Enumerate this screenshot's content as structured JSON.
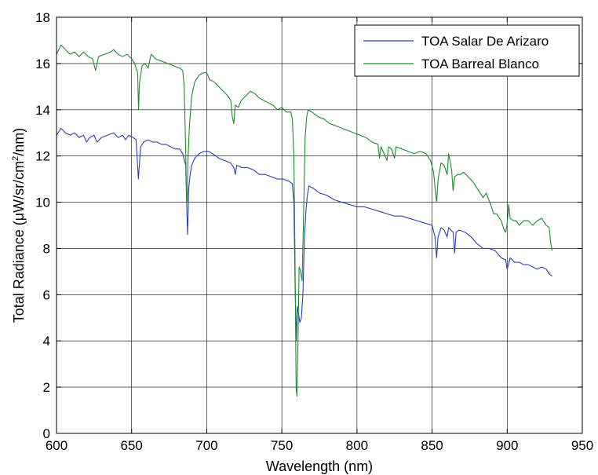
{
  "chart_data": {
    "type": "line",
    "xlabel": "Wavelength (nm)",
    "ylabel_parts": {
      "before": "Total Radiance (μW/sr/cm",
      "sup": "2",
      "after": "/nm)"
    },
    "xlim": [
      600,
      950
    ],
    "ylim": [
      0,
      18
    ],
    "xticks": [
      600,
      650,
      700,
      750,
      800,
      850,
      900,
      950
    ],
    "yticks": [
      0,
      2,
      4,
      6,
      8,
      10,
      12,
      14,
      16,
      18
    ],
    "grid": true,
    "legend_position": "top-right",
    "series": [
      {
        "name": "TOA Salar De Arizaro",
        "color": "#2b3fb5",
        "points": [
          [
            600,
            12.9
          ],
          [
            603,
            13.2
          ],
          [
            606,
            13.0
          ],
          [
            609,
            12.9
          ],
          [
            612,
            13.0
          ],
          [
            615,
            12.8
          ],
          [
            618,
            12.9
          ],
          [
            620,
            12.6
          ],
          [
            622,
            12.8
          ],
          [
            625,
            12.9
          ],
          [
            627,
            12.6
          ],
          [
            630,
            12.8
          ],
          [
            634,
            12.9
          ],
          [
            638,
            13.0
          ],
          [
            641,
            12.8
          ],
          [
            644,
            12.9
          ],
          [
            646,
            12.7
          ],
          [
            648,
            12.9
          ],
          [
            651,
            12.8
          ],
          [
            653,
            12.7
          ],
          [
            654.5,
            11.0
          ],
          [
            656,
            12.4
          ],
          [
            658,
            12.6
          ],
          [
            661,
            12.7
          ],
          [
            664,
            12.6
          ],
          [
            667,
            12.6
          ],
          [
            670,
            12.5
          ],
          [
            673,
            12.5
          ],
          [
            676,
            12.4
          ],
          [
            679,
            12.3
          ],
          [
            682,
            12.3
          ],
          [
            684,
            12.1
          ],
          [
            686,
            11.6
          ],
          [
            686.8,
            9.6
          ],
          [
            687.3,
            8.6
          ],
          [
            688,
            10.6
          ],
          [
            689,
            11.2
          ],
          [
            690,
            11.6
          ],
          [
            692,
            11.9
          ],
          [
            695,
            12.1
          ],
          [
            698,
            12.2
          ],
          [
            701,
            12.2
          ],
          [
            704,
            12.1
          ],
          [
            708,
            11.9
          ],
          [
            712,
            11.8
          ],
          [
            716,
            11.7
          ],
          [
            718,
            11.5
          ],
          [
            719,
            11.2
          ],
          [
            720,
            11.6
          ],
          [
            723,
            11.5
          ],
          [
            727,
            11.5
          ],
          [
            731,
            11.4
          ],
          [
            735,
            11.2
          ],
          [
            739,
            11.2
          ],
          [
            743,
            11.1
          ],
          [
            747,
            11.0
          ],
          [
            751,
            11.0
          ],
          [
            755,
            10.9
          ],
          [
            757,
            10.8
          ],
          [
            758,
            10.0
          ],
          [
            758.8,
            6.5
          ],
          [
            759.6,
            4.0
          ],
          [
            760.3,
            5.5
          ],
          [
            761,
            5.2
          ],
          [
            762,
            4.8
          ],
          [
            763,
            5.0
          ],
          [
            764,
            6.0
          ],
          [
            765,
            8.4
          ],
          [
            766,
            9.6
          ],
          [
            767,
            10.3
          ],
          [
            768,
            10.7
          ],
          [
            771,
            10.6
          ],
          [
            775,
            10.4
          ],
          [
            780,
            10.3
          ],
          [
            785,
            10.1
          ],
          [
            790,
            10.0
          ],
          [
            795,
            9.9
          ],
          [
            800,
            9.8
          ],
          [
            805,
            9.8
          ],
          [
            810,
            9.7
          ],
          [
            815,
            9.6
          ],
          [
            820,
            9.5
          ],
          [
            825,
            9.4
          ],
          [
            830,
            9.4
          ],
          [
            835,
            9.3
          ],
          [
            840,
            9.2
          ],
          [
            845,
            9.1
          ],
          [
            850,
            9.0
          ],
          [
            852,
            8.5
          ],
          [
            853,
            7.6
          ],
          [
            854,
            8.5
          ],
          [
            856,
            8.9
          ],
          [
            858,
            8.8
          ],
          [
            860,
            8.5
          ],
          [
            861,
            8.9
          ],
          [
            864,
            8.7
          ],
          [
            865,
            7.8
          ],
          [
            866,
            8.7
          ],
          [
            868,
            8.8
          ],
          [
            872,
            8.7
          ],
          [
            876,
            8.5
          ],
          [
            880,
            8.2
          ],
          [
            884,
            8.0
          ],
          [
            888,
            8.0
          ],
          [
            892,
            7.9
          ],
          [
            896,
            7.6
          ],
          [
            899,
            7.5
          ],
          [
            900,
            7.1
          ],
          [
            902,
            7.6
          ],
          [
            905,
            7.4
          ],
          [
            908,
            7.4
          ],
          [
            911,
            7.3
          ],
          [
            914,
            7.3
          ],
          [
            917,
            7.2
          ],
          [
            920,
            7.1
          ],
          [
            923,
            7.2
          ],
          [
            926,
            7.1
          ],
          [
            928,
            6.9
          ],
          [
            930,
            6.8
          ]
        ]
      },
      {
        "name": "TOA Barreal Blanco",
        "color": "#1e8a2c",
        "points": [
          [
            600,
            16.4
          ],
          [
            603,
            16.8
          ],
          [
            606,
            16.6
          ],
          [
            609,
            16.4
          ],
          [
            612,
            16.5
          ],
          [
            615,
            16.3
          ],
          [
            618,
            16.5
          ],
          [
            621,
            16.3
          ],
          [
            624,
            16.2
          ],
          [
            626,
            15.7
          ],
          [
            628,
            16.3
          ],
          [
            632,
            16.4
          ],
          [
            636,
            16.5
          ],
          [
            638,
            16.6
          ],
          [
            641,
            16.4
          ],
          [
            644,
            16.3
          ],
          [
            647,
            16.4
          ],
          [
            650,
            16.2
          ],
          [
            652,
            16.0
          ],
          [
            654,
            15.6
          ],
          [
            654.6,
            14.0
          ],
          [
            655.3,
            15.2
          ],
          [
            657,
            15.9
          ],
          [
            659,
            16.0
          ],
          [
            661,
            15.8
          ],
          [
            663,
            16.4
          ],
          [
            666,
            16.2
          ],
          [
            670,
            16.1
          ],
          [
            674,
            16.0
          ],
          [
            678,
            15.9
          ],
          [
            682,
            15.8
          ],
          [
            684,
            15.7
          ],
          [
            685,
            15.0
          ],
          [
            686,
            12.2
          ],
          [
            686.5,
            10.5
          ],
          [
            687,
            10.0
          ],
          [
            687.5,
            11.8
          ],
          [
            688.5,
            13.3
          ],
          [
            690,
            14.6
          ],
          [
            692,
            15.2
          ],
          [
            695,
            15.5
          ],
          [
            698,
            15.6
          ],
          [
            700,
            15.6
          ],
          [
            702,
            15.3
          ],
          [
            705,
            15.2
          ],
          [
            708,
            15.0
          ],
          [
            711,
            14.8
          ],
          [
            714,
            14.6
          ],
          [
            716,
            14.4
          ],
          [
            717,
            13.7
          ],
          [
            718,
            13.4
          ],
          [
            719,
            14.2
          ],
          [
            721,
            14.1
          ],
          [
            723,
            14.4
          ],
          [
            726,
            14.6
          ],
          [
            729,
            14.8
          ],
          [
            732,
            14.7
          ],
          [
            735,
            14.5
          ],
          [
            738,
            14.4
          ],
          [
            741,
            14.3
          ],
          [
            744,
            14.2
          ],
          [
            747,
            14.0
          ],
          [
            750,
            14.1
          ],
          [
            753,
            13.9
          ],
          [
            756,
            13.9
          ],
          [
            757,
            13.6
          ],
          [
            758,
            12.0
          ],
          [
            758.7,
            8.0
          ],
          [
            759.5,
            2.0
          ],
          [
            760,
            1.6
          ],
          [
            760.7,
            3.8
          ],
          [
            761.5,
            7.2
          ],
          [
            762.5,
            7.0
          ],
          [
            763.5,
            6.6
          ],
          [
            764.5,
            9.5
          ],
          [
            765.5,
            12.8
          ],
          [
            766.5,
            13.7
          ],
          [
            767.5,
            14.0
          ],
          [
            770,
            13.9
          ],
          [
            774,
            13.7
          ],
          [
            778,
            13.6
          ],
          [
            782,
            13.4
          ],
          [
            786,
            13.3
          ],
          [
            790,
            13.2
          ],
          [
            794,
            13.1
          ],
          [
            798,
            13.0
          ],
          [
            802,
            12.9
          ],
          [
            806,
            12.8
          ],
          [
            810,
            12.6
          ],
          [
            814,
            12.5
          ],
          [
            815,
            11.9
          ],
          [
            816,
            12.4
          ],
          [
            818,
            12.1
          ],
          [
            820,
            11.8
          ],
          [
            821,
            12.4
          ],
          [
            823,
            12.3
          ],
          [
            825,
            11.9
          ],
          [
            826,
            12.4
          ],
          [
            830,
            12.3
          ],
          [
            834,
            12.2
          ],
          [
            838,
            12.1
          ],
          [
            842,
            12.2
          ],
          [
            846,
            12.1
          ],
          [
            849,
            11.8
          ],
          [
            851,
            11.3
          ],
          [
            852,
            10.6
          ],
          [
            853,
            10.0
          ],
          [
            854,
            11.0
          ],
          [
            856,
            11.7
          ],
          [
            858,
            11.6
          ],
          [
            860,
            11.2
          ],
          [
            861,
            12.1
          ],
          [
            863,
            11.4
          ],
          [
            864,
            10.5
          ],
          [
            865,
            11.1
          ],
          [
            867,
            11.2
          ],
          [
            869,
            11.2
          ],
          [
            871,
            11.3
          ],
          [
            874,
            11.1
          ],
          [
            877,
            10.9
          ],
          [
            880,
            10.6
          ],
          [
            884,
            10.2
          ],
          [
            886,
            10.4
          ],
          [
            889,
            9.9
          ],
          [
            891,
            9.5
          ],
          [
            893,
            9.5
          ],
          [
            896,
            9.2
          ],
          [
            898,
            8.8
          ],
          [
            899,
            8.7
          ],
          [
            900,
            9.1
          ],
          [
            901,
            9.9
          ],
          [
            902,
            9.3
          ],
          [
            904,
            9.2
          ],
          [
            906,
            9.2
          ],
          [
            908,
            9.0
          ],
          [
            911,
            9.2
          ],
          [
            914,
            9.2
          ],
          [
            917,
            9.0
          ],
          [
            920,
            9.2
          ],
          [
            923,
            9.3
          ],
          [
            926,
            9.0
          ],
          [
            928,
            8.9
          ],
          [
            929,
            8.2
          ],
          [
            930,
            7.9
          ]
        ]
      }
    ]
  }
}
